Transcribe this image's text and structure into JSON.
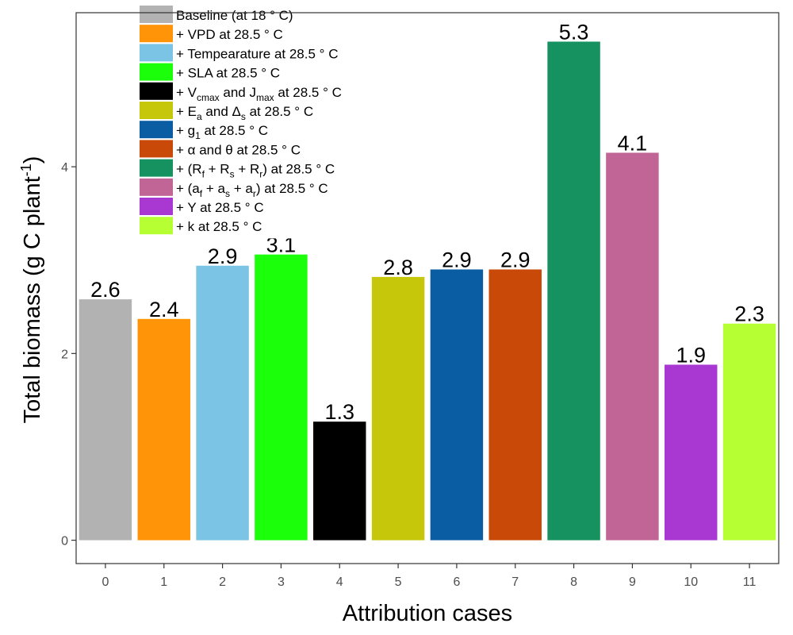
{
  "chart_data": {
    "type": "bar",
    "xlabel": "Attribution cases",
    "ylabel": {
      "base": "Total biomass (g C plant",
      "sup": "-1",
      "close": ")"
    },
    "ylim": [
      -0.25,
      5.65
    ],
    "yticks": [
      0,
      2,
      4
    ],
    "categories": [
      "0",
      "1",
      "2",
      "3",
      "4",
      "5",
      "6",
      "7",
      "8",
      "9",
      "10",
      "11"
    ],
    "values": [
      2.58,
      2.37,
      2.94,
      3.06,
      1.27,
      2.82,
      2.9,
      2.9,
      5.34,
      4.15,
      1.88,
      2.32
    ],
    "labels": [
      "2.6",
      "2.4",
      "2.9",
      "3.1",
      "1.3",
      "2.8",
      "2.9",
      "2.9",
      "5.3",
      "4.1",
      "1.9",
      "2.3"
    ],
    "colors": [
      "#b2b2b2",
      "#ff9408",
      "#7bc4e5",
      "#1cff0a",
      "#000000",
      "#c6c60a",
      "#0b5da3",
      "#c94a08",
      "#169160",
      "#c16597",
      "#a938d3",
      "#b5ff33"
    ],
    "legend": [
      {
        "color": "#b2b2b2",
        "parts": [
          {
            "t": "Baseline (at 18 ° C)"
          }
        ]
      },
      {
        "color": "#ff9408",
        "parts": [
          {
            "t": "+ VPD at 28.5 ° C"
          }
        ]
      },
      {
        "color": "#7bc4e5",
        "parts": [
          {
            "t": "+ Tempearature at 28.5 ° C"
          }
        ]
      },
      {
        "color": "#1cff0a",
        "parts": [
          {
            "t": "+ SLA at 28.5 ° C"
          }
        ]
      },
      {
        "color": "#000000",
        "parts": [
          {
            "t": "+ V"
          },
          {
            "t": "cmax",
            "sub": true
          },
          {
            "t": " and J"
          },
          {
            "t": "max",
            "sub": true
          },
          {
            "t": " at 28.5 ° C"
          }
        ]
      },
      {
        "color": "#c6c60a",
        "parts": [
          {
            "t": "+ E"
          },
          {
            "t": "a",
            "sub": true
          },
          {
            "t": " and Δ"
          },
          {
            "t": "s",
            "sub": true
          },
          {
            "t": " at 28.5 ° C"
          }
        ]
      },
      {
        "color": "#0b5da3",
        "parts": [
          {
            "t": "+ g"
          },
          {
            "t": "1",
            "sub": true
          },
          {
            "t": " at 28.5 ° C"
          }
        ]
      },
      {
        "color": "#c94a08",
        "parts": [
          {
            "t": "+ α and θ at 28.5 ° C"
          }
        ]
      },
      {
        "color": "#169160",
        "parts": [
          {
            "t": "+ (R"
          },
          {
            "t": "f",
            "sub": true
          },
          {
            "t": " + R"
          },
          {
            "t": "s",
            "sub": true
          },
          {
            "t": " + R"
          },
          {
            "t": "r",
            "sub": true
          },
          {
            "t": ") at 28.5 ° C"
          }
        ]
      },
      {
        "color": "#c16597",
        "parts": [
          {
            "t": "+ (a"
          },
          {
            "t": "f",
            "sub": true
          },
          {
            "t": " + a"
          },
          {
            "t": "s",
            "sub": true
          },
          {
            "t": " + a"
          },
          {
            "t": "r",
            "sub": true
          },
          {
            "t": ") at 28.5 ° C"
          }
        ]
      },
      {
        "color": "#a938d3",
        "parts": [
          {
            "t": "+ Y at 28.5 ° C"
          }
        ]
      },
      {
        "color": "#b5ff33",
        "parts": [
          {
            "t": "+ k at 28.5 ° C"
          }
        ]
      }
    ],
    "legend_position": "top-left, inside plot",
    "grid": false
  }
}
